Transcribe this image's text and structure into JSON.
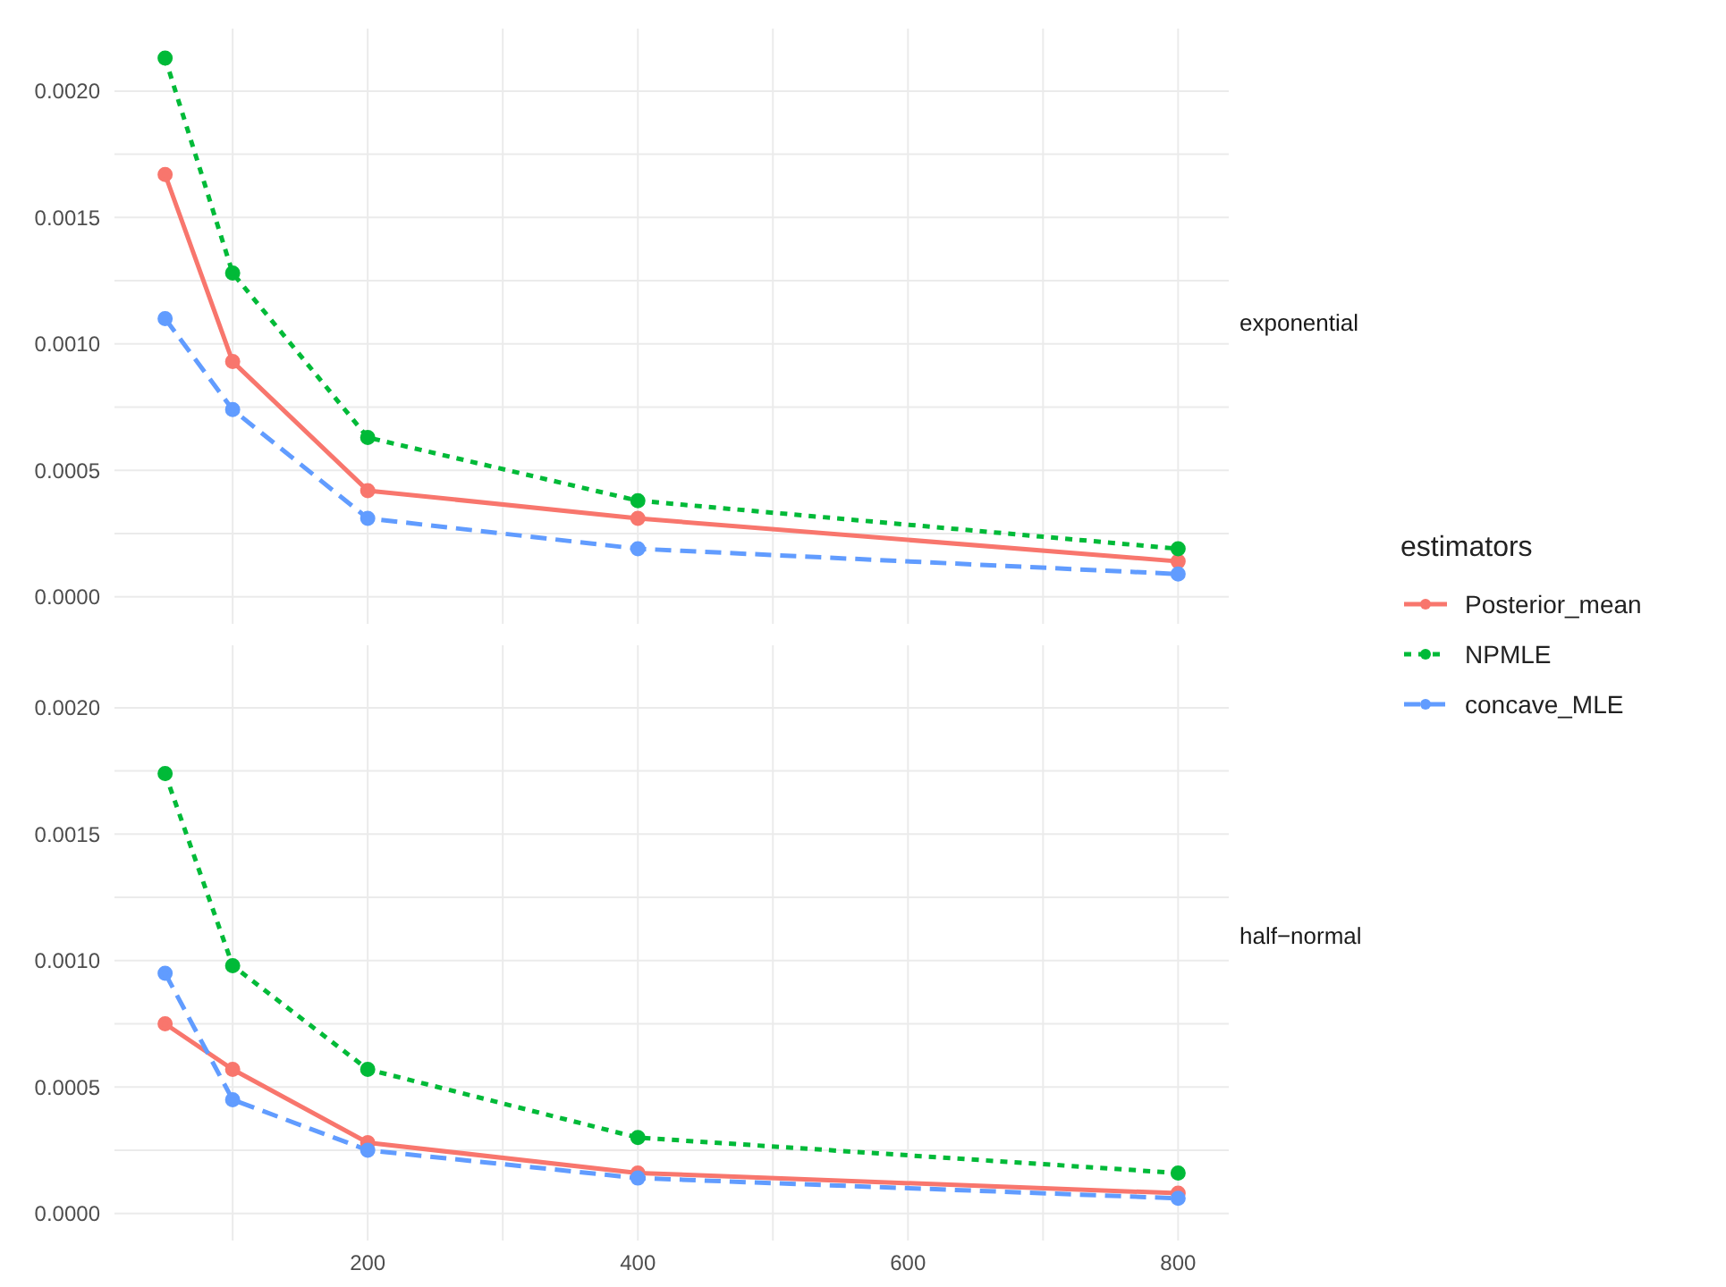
{
  "chart_data": [
    {
      "type": "line",
      "title": "exponential",
      "legend_title": "estimators",
      "x": [
        50,
        100,
        200,
        400,
        800
      ],
      "series": [
        {
          "name": "Posterior_mean",
          "color": "#f8766d",
          "line_style": "solid",
          "values": [
            0.00167,
            0.00093,
            0.00042,
            0.00031,
            0.00014
          ]
        },
        {
          "name": "NPMLE",
          "color": "#00ba38",
          "line_style": "dotted",
          "values": [
            0.00213,
            0.00128,
            0.00063,
            0.00038,
            0.00019
          ]
        },
        {
          "name": "concave_MLE",
          "color": "#619cff",
          "line_style": "dashed",
          "values": [
            0.0011,
            0.00074,
            0.00031,
            0.00019,
            9e-05
          ]
        }
      ],
      "xlim": [
        12.5,
        837.5
      ],
      "xticks": [
        {
          "value": 100,
          "label": null
        },
        200,
        {
          "value": 300,
          "label": null
        },
        400,
        {
          "value": 500,
          "label": null
        },
        600,
        {
          "value": 700,
          "label": null
        },
        800
      ],
      "ylim": [
        -0.000107,
        0.002247
      ],
      "yticks": [
        {
          "value": 0,
          "label": "0.0000"
        },
        {
          "value": 0.00025,
          "label": null
        },
        {
          "value": 0.0005,
          "label": "0.0005"
        },
        {
          "value": 0.00075,
          "label": null
        },
        {
          "value": 0.001,
          "label": "0.0010"
        },
        {
          "value": 0.00125,
          "label": null
        },
        {
          "value": 0.0015,
          "label": "0.0015"
        },
        {
          "value": 0.00175,
          "label": null
        },
        {
          "value": 0.002,
          "label": "0.0020"
        }
      ],
      "grid": true,
      "marker": "circle",
      "legend": "right",
      "tick_labels": "y"
    },
    {
      "type": "line",
      "title": "half−normal",
      "x": [
        50,
        100,
        200,
        400,
        800
      ],
      "series": [
        {
          "color": "#f8766d",
          "line_style": "solid",
          "values": [
            0.00075,
            0.00057,
            0.00028,
            0.00016,
            8e-05
          ]
        },
        {
          "color": "#00ba38",
          "line_style": "dotted",
          "values": [
            0.00174,
            0.00098,
            0.00057,
            0.0003,
            0.00016
          ]
        },
        {
          "color": "#619cff",
          "line_style": "dashed",
          "values": [
            0.00095,
            0.00045,
            0.00025,
            0.00014,
            6e-05
          ]
        }
      ],
      "xlim": [
        12.5,
        837.5
      ],
      "xticks": [
        {
          "value": 100,
          "label": null
        },
        200,
        {
          "value": 300,
          "label": null
        },
        400,
        {
          "value": 500,
          "label": null
        },
        600,
        {
          "value": 700,
          "label": null
        },
        800
      ],
      "ylim": [
        -0.000107,
        0.002247
      ],
      "yticks": [
        {
          "value": 0,
          "label": "0.0000"
        },
        {
          "value": 0.00025,
          "label": null
        },
        {
          "value": 0.0005,
          "label": "0.0005"
        },
        {
          "value": 0.00075,
          "label": null
        },
        {
          "value": 0.001,
          "label": "0.0010"
        },
        {
          "value": 0.00125,
          "label": null
        },
        {
          "value": 0.0015,
          "label": "0.0015"
        },
        {
          "value": 0.00175,
          "label": null
        },
        {
          "value": 0.002,
          "label": "0.0020"
        }
      ],
      "grid": true,
      "marker": "circle"
    }
  ]
}
